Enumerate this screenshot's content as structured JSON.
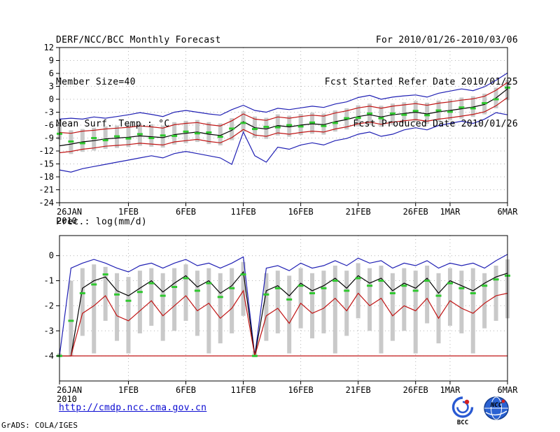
{
  "header": {
    "title": "DERF/NCC/BCC Monthly Forecast",
    "member_size": "Member Size=40",
    "temp_label": "Mean Surf. Temp.: °C",
    "valid_range": "For 2010/01/26-2010/03/06",
    "refer_date": "Fcst Started Refer Date 2010/01/25",
    "produced_date": "Fcst Produced Date 2010/01/26"
  },
  "prec_label": "Prec.: log(mm/d)",
  "footer": {
    "url": "http://cmdp.ncc.cma.gov.cn",
    "credit": "GrADS: COLA/IGES",
    "logos": [
      {
        "label": "BCC"
      },
      {
        "label": "NCC"
      }
    ]
  },
  "colors": {
    "envelope_blue": "#2020b4",
    "quartile_red": "#c01414",
    "mean_black": "#000000",
    "median_green": "#2fc82f",
    "bar_gray": "#c9c9c9",
    "grid_gray": "#b4b4b4",
    "link_blue": "#0b0bd2"
  },
  "chart_data": [
    {
      "type": "line",
      "name": "temperature-chart",
      "title": "Mean Surf. Temp.: °C",
      "ylabel": "°C",
      "ylim": [
        -24,
        12
      ],
      "yticks": [
        12,
        9,
        6,
        3,
        0,
        -3,
        -6,
        -9,
        -12,
        -15,
        -18,
        -21,
        -24
      ],
      "n_days": 40,
      "grid": "dotted",
      "x_ticks": [
        {
          "day": 0,
          "label": "26JAN",
          "sub": "2010"
        },
        {
          "day": 6,
          "label": "1FEB"
        },
        {
          "day": 11,
          "label": "6FEB"
        },
        {
          "day": 16,
          "label": "11FEB"
        },
        {
          "day": 21,
          "label": "16FEB"
        },
        {
          "day": 26,
          "label": "21FEB"
        },
        {
          "day": 31,
          "label": "26FEB"
        },
        {
          "day": 34,
          "label": "1MAR"
        },
        {
          "day": 39,
          "label": "6MAR"
        }
      ],
      "series": [
        {
          "name": "ensemble-max",
          "color": "#2020b4",
          "style": "line",
          "values": [
            -4.6,
            -4.4,
            -4.6,
            -4.1,
            -4.4,
            -4.0,
            -3.6,
            -3.1,
            -3.5,
            -4.0,
            -3.0,
            -2.6,
            -3.0,
            -3.4,
            -3.7,
            -2.4,
            -1.4,
            -2.6,
            -3.0,
            -2.1,
            -2.4,
            -2.0,
            -1.6,
            -1.9,
            -1.1,
            -0.6,
            0.4,
            0.9,
            0.0,
            0.5,
            0.8,
            1.0,
            0.5,
            1.4,
            1.9,
            2.4,
            2.0,
            2.9,
            4.4,
            6.1
          ]
        },
        {
          "name": "upper-quartile",
          "color": "#c01414",
          "style": "line",
          "values": [
            -7.7,
            -7.9,
            -7.4,
            -7.2,
            -6.9,
            -6.7,
            -6.5,
            -6.2,
            -6.4,
            -6.7,
            -5.9,
            -5.6,
            -5.4,
            -5.9,
            -6.2,
            -5.0,
            -3.4,
            -4.6,
            -4.9,
            -4.1,
            -4.4,
            -4.0,
            -3.7,
            -3.9,
            -3.2,
            -2.7,
            -2.0,
            -1.6,
            -2.1,
            -1.6,
            -1.3,
            -1.0,
            -1.4,
            -0.9,
            -0.6,
            -0.2,
            0.1,
            0.7,
            2.1,
            3.9
          ]
        },
        {
          "name": "ensemble-mean",
          "color": "#000000",
          "style": "line",
          "values": [
            -10.8,
            -10.4,
            -9.9,
            -9.6,
            -9.2,
            -9.0,
            -8.8,
            -8.5,
            -8.7,
            -8.9,
            -8.2,
            -7.9,
            -7.6,
            -8.1,
            -8.4,
            -7.2,
            -5.2,
            -6.6,
            -6.9,
            -6.1,
            -6.4,
            -6.0,
            -5.7,
            -5.9,
            -5.2,
            -4.7,
            -4.0,
            -3.6,
            -4.1,
            -3.6,
            -3.3,
            -3.0,
            -3.4,
            -2.9,
            -2.6,
            -2.2,
            -1.8,
            -1.2,
            0.3,
            2.4
          ]
        },
        {
          "name": "lower-quartile",
          "color": "#c01414",
          "style": "line",
          "values": [
            -12.4,
            -12.1,
            -11.6,
            -11.3,
            -10.9,
            -10.7,
            -10.5,
            -10.2,
            -10.4,
            -10.6,
            -9.9,
            -9.6,
            -9.3,
            -9.8,
            -10.1,
            -8.9,
            -7.0,
            -8.3,
            -8.6,
            -7.8,
            -8.1,
            -7.7,
            -7.4,
            -7.6,
            -6.9,
            -6.4,
            -5.7,
            -5.3,
            -5.8,
            -5.3,
            -5.0,
            -4.7,
            -5.1,
            -4.6,
            -4.3,
            -3.9,
            -3.5,
            -2.9,
            -1.5,
            0.4
          ]
        },
        {
          "name": "ensemble-min",
          "color": "#2020b4",
          "style": "line",
          "values": [
            -16.4,
            -16.9,
            -16.1,
            -15.6,
            -15.1,
            -14.6,
            -14.1,
            -13.6,
            -13.1,
            -13.6,
            -12.6,
            -12.1,
            -12.6,
            -13.1,
            -13.6,
            -15.1,
            -7.6,
            -13.1,
            -14.6,
            -11.1,
            -11.6,
            -10.6,
            -10.1,
            -10.6,
            -9.6,
            -9.1,
            -8.1,
            -7.6,
            -8.6,
            -8.1,
            -7.1,
            -6.6,
            -7.1,
            -6.1,
            -5.6,
            -5.1,
            -5.6,
            -4.6,
            -3.1,
            -3.6
          ]
        },
        {
          "name": "ensemble-median",
          "color": "#2fc82f",
          "style": "dash",
          "values": [
            -8.0,
            -9.8,
            -10.2,
            -9.0,
            -9.5,
            -8.6,
            -9.1,
            -8.1,
            -9.0,
            -8.4,
            -8.5,
            -7.5,
            -7.9,
            -7.7,
            -8.7,
            -6.8,
            -5.5,
            -6.9,
            -6.4,
            -6.5,
            -6.0,
            -6.3,
            -5.4,
            -6.2,
            -5.5,
            -4.4,
            -4.3,
            -3.3,
            -4.4,
            -3.3,
            -3.6,
            -2.7,
            -3.7,
            -2.6,
            -2.9,
            -1.9,
            -2.1,
            -0.9,
            0.0,
            2.7
          ]
        }
      ],
      "bars": {
        "color": "#c9c9c9",
        "top": [
          -6.2,
          -7.2,
          -6.9,
          -6.6,
          -6.3,
          -6.1,
          -5.9,
          -5.6,
          -5.8,
          -6.1,
          -5.3,
          -5.0,
          -4.8,
          -5.3,
          -5.6,
          -4.4,
          -2.8,
          -4.0,
          -4.3,
          -3.5,
          -3.8,
          -3.4,
          -3.1,
          -3.3,
          -2.6,
          -2.1,
          -1.4,
          -1.0,
          -1.5,
          -1.0,
          -0.7,
          -0.4,
          -0.8,
          -0.3,
          0.0,
          0.4,
          0.7,
          1.3,
          2.7,
          4.5
        ],
        "bottom": [
          -9.4,
          -12.7,
          -12.2,
          -11.9,
          -11.5,
          -11.3,
          -11.1,
          -10.8,
          -11.0,
          -11.2,
          -10.5,
          -10.2,
          -9.9,
          -10.4,
          -10.7,
          -9.5,
          -7.6,
          -8.9,
          -9.2,
          -8.4,
          -8.7,
          -8.3,
          -8.0,
          -8.2,
          -7.5,
          -7.0,
          -6.3,
          -5.9,
          -6.4,
          -5.9,
          -5.6,
          -5.3,
          -5.7,
          -5.2,
          -4.9,
          -4.5,
          -4.1,
          -3.5,
          -2.1,
          -0.2
        ]
      }
    },
    {
      "type": "line",
      "name": "precipitation-chart",
      "title": "Prec.: log(mm/d)",
      "ylabel": "log(mm/d)",
      "ylim": [
        -5.0,
        0.8
      ],
      "yticks": [
        0,
        -1,
        -2,
        -3,
        -4
      ],
      "n_days": 40,
      "grid": "dotted",
      "x_ticks": [
        {
          "day": 0,
          "label": "26JAN",
          "sub": "2010"
        },
        {
          "day": 6,
          "label": "1FEB"
        },
        {
          "day": 11,
          "label": "6FEB"
        },
        {
          "day": 16,
          "label": "11FEB"
        },
        {
          "day": 21,
          "label": "16FEB"
        },
        {
          "day": 26,
          "label": "21FEB"
        },
        {
          "day": 31,
          "label": "26FEB"
        },
        {
          "day": 34,
          "label": "1MAR"
        },
        {
          "day": 39,
          "label": "6MAR"
        }
      ],
      "series": [
        {
          "name": "ensemble-max",
          "color": "#2020b4",
          "style": "line",
          "values": [
            -4.0,
            -0.5,
            -0.3,
            -0.15,
            -0.3,
            -0.5,
            -0.65,
            -0.4,
            -0.3,
            -0.5,
            -0.3,
            -0.15,
            -0.4,
            -0.3,
            -0.5,
            -0.3,
            -0.05,
            -4.0,
            -0.5,
            -0.4,
            -0.6,
            -0.3,
            -0.5,
            -0.4,
            -0.2,
            -0.4,
            -0.1,
            -0.3,
            -0.2,
            -0.5,
            -0.3,
            -0.4,
            -0.2,
            -0.5,
            -0.3,
            -0.4,
            -0.3,
            -0.5,
            -0.2,
            0.05
          ]
        },
        {
          "name": "ensemble-mean",
          "color": "#000000",
          "style": "line",
          "values": [
            -4.0,
            -4.0,
            -1.3,
            -1.0,
            -0.85,
            -1.4,
            -1.6,
            -1.3,
            -1.0,
            -1.45,
            -1.1,
            -0.8,
            -1.25,
            -1.0,
            -1.5,
            -1.2,
            -0.65,
            -4.0,
            -1.4,
            -1.2,
            -1.6,
            -1.1,
            -1.4,
            -1.2,
            -0.9,
            -1.3,
            -0.8,
            -1.1,
            -0.9,
            -1.4,
            -1.1,
            -1.3,
            -0.9,
            -1.5,
            -1.0,
            -1.2,
            -1.4,
            -1.1,
            -0.85,
            -0.7
          ]
        },
        {
          "name": "lower-quartile",
          "color": "#c01414",
          "style": "line",
          "values": [
            -4.0,
            -4.0,
            -2.3,
            -2.0,
            -1.6,
            -2.4,
            -2.6,
            -2.2,
            -1.8,
            -2.4,
            -2.0,
            -1.6,
            -2.2,
            -1.9,
            -2.5,
            -2.1,
            -1.4,
            -4.0,
            -2.4,
            -2.1,
            -2.7,
            -1.9,
            -2.3,
            -2.1,
            -1.7,
            -2.2,
            -1.5,
            -2.0,
            -1.7,
            -2.4,
            -2.0,
            -2.2,
            -1.7,
            -2.5,
            -1.8,
            -2.1,
            -2.3,
            -1.9,
            -1.6,
            -1.5
          ]
        },
        {
          "name": "ensemble-min-floor",
          "color": "#c01414",
          "style": "line",
          "values": [
            -4.0,
            -4.0,
            -4.0,
            -4.0,
            -4.0,
            -4.0,
            -4.0,
            -4.0,
            -4.0,
            -4.0,
            -4.0,
            -4.0,
            -4.0,
            -4.0,
            -4.0,
            -4.0,
            -4.0,
            -4.0,
            -4.0,
            -4.0,
            -4.0,
            -4.0,
            -4.0,
            -4.0,
            -4.0,
            -4.0,
            -4.0,
            -4.0,
            -4.0,
            -4.0,
            -4.0,
            -4.0,
            -4.0,
            -4.0,
            -4.0,
            -4.0,
            -4.0,
            -4.0,
            -4.0,
            -4.0
          ]
        },
        {
          "name": "ensemble-median",
          "color": "#2fc82f",
          "style": "dash",
          "values": [
            -4.0,
            -2.6,
            -1.5,
            -1.15,
            -0.75,
            -1.55,
            -1.8,
            -1.45,
            -1.1,
            -1.6,
            -1.25,
            -0.9,
            -1.4,
            -1.1,
            -1.65,
            -1.3,
            -0.75,
            -4.0,
            -1.55,
            -1.3,
            -1.75,
            -1.2,
            -1.5,
            -1.3,
            -1.0,
            -1.4,
            -0.9,
            -1.2,
            -1.0,
            -1.5,
            -1.2,
            -1.4,
            -1.0,
            -1.6,
            -1.1,
            -1.3,
            -1.5,
            -1.2,
            -0.95,
            -0.8
          ]
        }
      ],
      "bars": {
        "color": "#c9c9c9",
        "top": [
          -3.9,
          -1.0,
          -0.5,
          -0.35,
          -0.45,
          -0.7,
          -0.85,
          -0.6,
          -0.5,
          -0.7,
          -0.5,
          -0.35,
          -0.6,
          -0.5,
          -0.7,
          -0.5,
          -0.25,
          -3.8,
          -0.7,
          -0.6,
          -0.8,
          -0.5,
          -0.7,
          -0.6,
          -0.4,
          -0.6,
          -0.3,
          -0.5,
          -0.4,
          -0.7,
          -0.5,
          -0.6,
          -0.4,
          -0.7,
          -0.5,
          -0.6,
          -0.5,
          -0.7,
          -0.4,
          -0.15
        ],
        "bottom": [
          -4.05,
          -4.0,
          -3.2,
          -3.9,
          -2.6,
          -3.4,
          -3.9,
          -3.1,
          -2.8,
          -3.4,
          -3.0,
          -2.6,
          -3.2,
          -3.9,
          -3.5,
          -3.1,
          -2.4,
          -4.05,
          -3.4,
          -3.1,
          -3.9,
          -2.9,
          -3.3,
          -3.1,
          -3.9,
          -3.2,
          -2.5,
          -3.0,
          -3.9,
          -3.4,
          -3.0,
          -3.9,
          -2.7,
          -3.5,
          -2.8,
          -3.1,
          -3.9,
          -2.9,
          -2.6,
          -2.5
        ]
      }
    }
  ]
}
